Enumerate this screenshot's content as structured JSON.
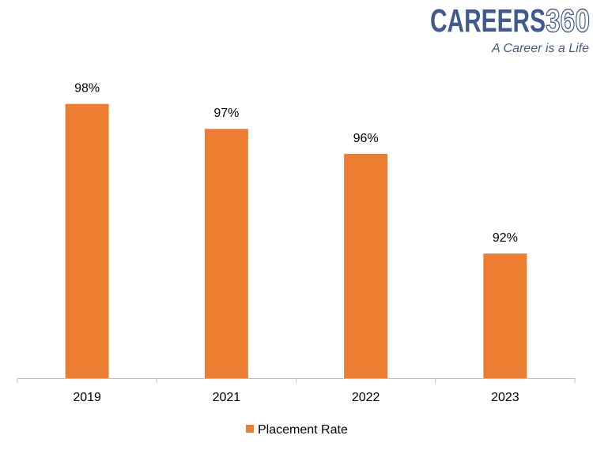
{
  "logo": {
    "brand": "CAREERS",
    "number": "360",
    "tagline": "A Career is a Life",
    "brand_color": "#3f5a8c"
  },
  "chart_data": {
    "type": "bar",
    "categories": [
      "2019",
      "2021",
      "2022",
      "2023"
    ],
    "series": [
      {
        "name": "Placement Rate",
        "values": [
          98,
          97,
          96,
          92
        ],
        "color": "#ed7d31"
      }
    ],
    "data_labels": [
      "98%",
      "97%",
      "96%",
      "92%"
    ],
    "ylim": [
      87,
      100
    ],
    "y_axis_visible": false,
    "grid": false,
    "legend": {
      "position": "bottom",
      "entries": [
        "Placement Rate"
      ]
    }
  }
}
